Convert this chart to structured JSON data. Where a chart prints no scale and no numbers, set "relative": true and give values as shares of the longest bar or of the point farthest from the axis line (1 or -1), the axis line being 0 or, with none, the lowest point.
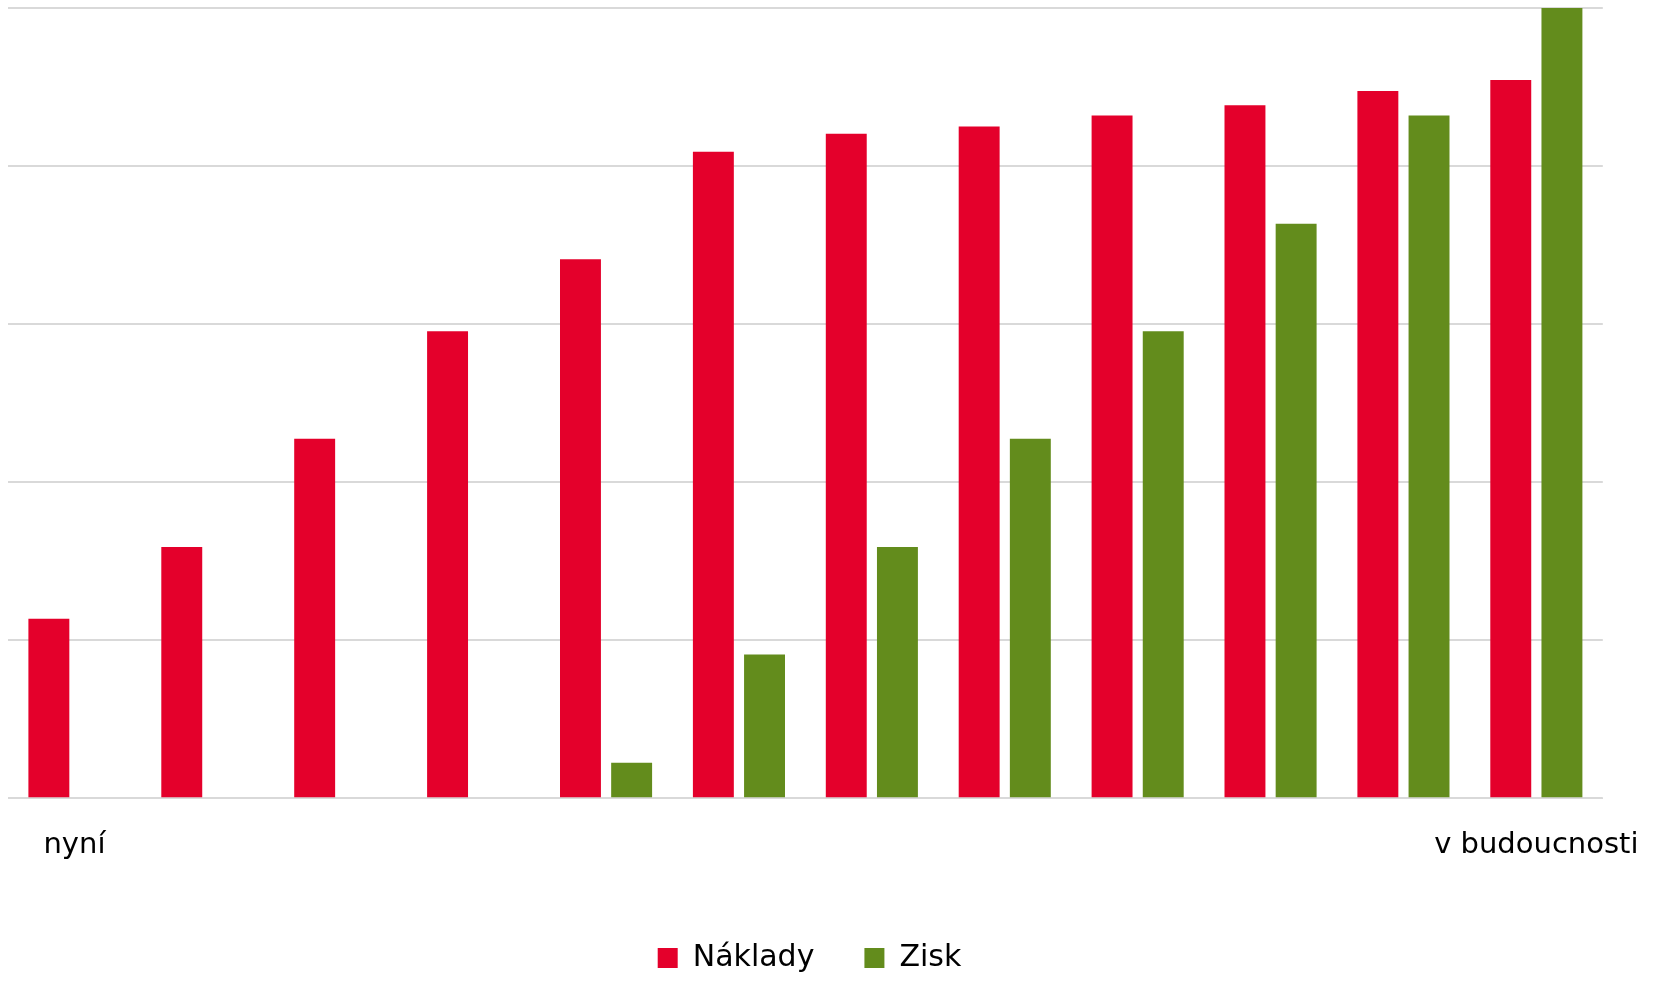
{
  "chart_data": {
    "type": "bar",
    "relative": true,
    "grid": "y",
    "legend": "bottom",
    "categories": [
      "nyní",
      null,
      null,
      null,
      null,
      null,
      null,
      null,
      null,
      null,
      null,
      "v budoucnosti"
    ],
    "series": [
      {
        "name": "Náklady",
        "color": "#e4002b",
        "values": [
          0.227,
          0.318,
          0.455,
          0.591,
          0.682,
          0.818,
          0.841,
          0.85,
          0.864,
          0.877,
          0.895,
          0.909
        ]
      },
      {
        "name": "Zisk",
        "color": "#638c1c",
        "values": [
          null,
          null,
          null,
          null,
          0.045,
          0.182,
          0.318,
          0.455,
          0.591,
          0.727,
          0.864,
          1
        ]
      }
    ]
  }
}
